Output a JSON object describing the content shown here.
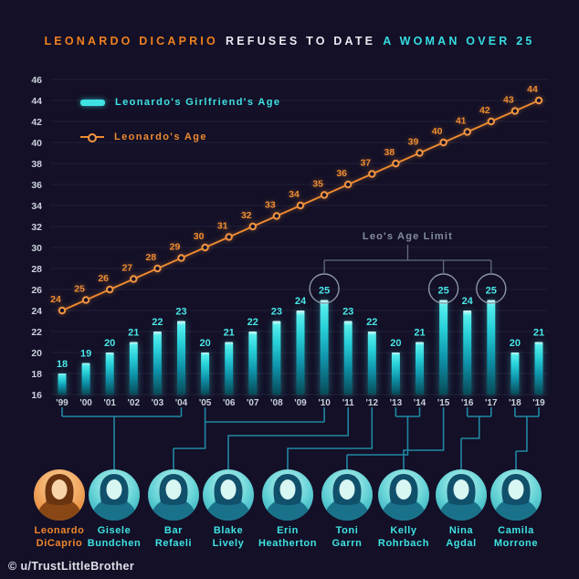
{
  "title": {
    "part1": "LEONARDO DICAPRIO",
    "part2": "REFUSES TO DATE",
    "part3": "A WOMAN OVER 25"
  },
  "credit": "© u/TrustLittleBrother",
  "colors": {
    "background": "#131027",
    "orange": "#ee8a30",
    "cyan": "#3fe3e3",
    "connector": "#2187a3",
    "annotation_gray": "#848da0",
    "axis_label": "#ccd1dd"
  },
  "legend": [
    {
      "label": "Leonardo's Girlfriend's Age",
      "type": "bar",
      "color": "#3fe3e3"
    },
    {
      "label": "Leonardo's Age",
      "type": "line",
      "color": "#ee8a30"
    }
  ],
  "annotation": {
    "label": "Leo's Age Limit",
    "circled_years": [
      "'10",
      "'15",
      "'17"
    ]
  },
  "chart_data": {
    "type": "bar",
    "categories": [
      "'99",
      "'00",
      "'01",
      "'02",
      "'03",
      "'04",
      "'05",
      "'06",
      "'07",
      "'08",
      "'09",
      "'10",
      "'11",
      "'12",
      "'13",
      "'14",
      "'15",
      "'16",
      "'17",
      "'18",
      "'19"
    ],
    "series": [
      {
        "name": "Leonardo's Girlfriend's Age",
        "type": "bar",
        "values": [
          18,
          19,
          20,
          21,
          22,
          23,
          20,
          21,
          22,
          23,
          24,
          25,
          23,
          22,
          20,
          21,
          25,
          24,
          25,
          20,
          21
        ]
      },
      {
        "name": "Leonardo's Age",
        "type": "line",
        "values": [
          24,
          25,
          26,
          27,
          28,
          29,
          30,
          31,
          32,
          33,
          34,
          35,
          36,
          37,
          38,
          39,
          40,
          41,
          42,
          43,
          44
        ]
      }
    ],
    "title": "Leonardo DiCaprio refuses to date a woman over 25",
    "xlabel": "",
    "ylabel": "",
    "ylim": [
      16,
      46
    ],
    "ytick_step": 2,
    "grid": true,
    "legend_position": "top-left"
  },
  "people": [
    {
      "name_line1": "Leonardo",
      "name_line2": "DiCaprio",
      "theme": "orange",
      "years": null
    },
    {
      "name_line1": "Gisele",
      "name_line2": "Bundchen",
      "theme": "cyan",
      "years": [
        "'99",
        "'04"
      ]
    },
    {
      "name_line1": "Bar",
      "name_line2": "Refaeli",
      "theme": "cyan",
      "years": [
        "'05",
        "'10"
      ]
    },
    {
      "name_line1": "Blake",
      "name_line2": "Lively",
      "theme": "cyan",
      "years": [
        "'11",
        "'11"
      ]
    },
    {
      "name_line1": "Erin",
      "name_line2": "Heatherton",
      "theme": "cyan",
      "years": [
        "'12",
        "'12"
      ]
    },
    {
      "name_line1": "Toni",
      "name_line2": "Garrn",
      "theme": "cyan",
      "years": [
        "'13",
        "'14"
      ]
    },
    {
      "name_line1": "Kelly",
      "name_line2": "Rohrbach",
      "theme": "cyan",
      "years": [
        "'15",
        "'15"
      ]
    },
    {
      "name_line1": "Nina",
      "name_line2": "Agdal",
      "theme": "cyan",
      "years": [
        "'16",
        "'17"
      ]
    },
    {
      "name_line1": "Camila",
      "name_line2": "Morrone",
      "theme": "cyan",
      "years": [
        "'18",
        "'19"
      ]
    }
  ]
}
